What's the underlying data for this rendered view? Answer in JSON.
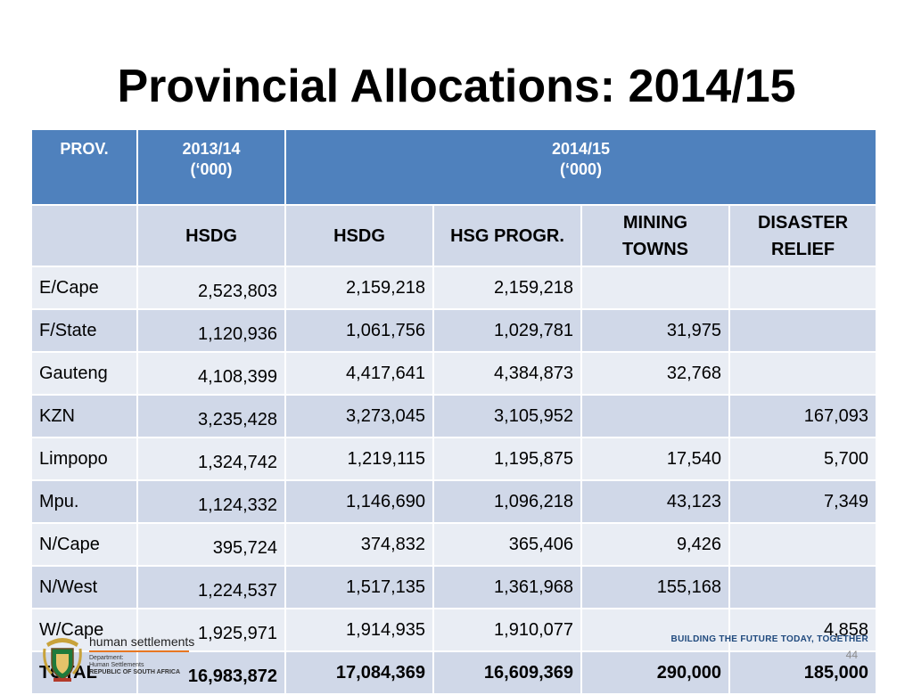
{
  "slide": {
    "title": "Provincial Allocations: 2014/15",
    "page_number": "44"
  },
  "table": {
    "header_row1": {
      "prov": "PROV.",
      "col2013": [
        "2013/14",
        "(‘000)"
      ],
      "col2014": [
        "2014/15",
        "(‘000)"
      ]
    },
    "header_row2": {
      "prov": "",
      "hsdg_2013": "HSDG",
      "hsdg_2014": "HSDG",
      "hsg_progr": "HSG PROGR.",
      "mining_towns": [
        "MINING",
        "TOWNS"
      ],
      "disaster_relief": [
        "DISASTER",
        "RELIEF"
      ]
    },
    "rows": [
      {
        "prov": "E/Cape",
        "c2013": "2,523,803",
        "hsdg": "2,159,218",
        "hsg": "2,159,218",
        "mining": "",
        "disaster": ""
      },
      {
        "prov": "F/State",
        "c2013": "1,120,936",
        "hsdg": "1,061,756",
        "hsg": "1,029,781",
        "mining": "31,975",
        "disaster": ""
      },
      {
        "prov": "Gauteng",
        "c2013": "4,108,399",
        "hsdg": "4,417,641",
        "hsg": "4,384,873",
        "mining": "32,768",
        "disaster": ""
      },
      {
        "prov": "KZN",
        "c2013": "3,235,428",
        "hsdg": "3,273,045",
        "hsg": "3,105,952",
        "mining": "",
        "disaster": "167,093"
      },
      {
        "prov": "Limpopo",
        "c2013": "1,324,742",
        "hsdg": "1,219,115",
        "hsg": "1,195,875",
        "mining": "17,540",
        "disaster": "5,700"
      },
      {
        "prov": "Mpu.",
        "c2013": "1,124,332",
        "hsdg": "1,146,690",
        "hsg": "1,096,218",
        "mining": "43,123",
        "disaster": "7,349"
      },
      {
        "prov": "N/Cape",
        "c2013": "395,724",
        "hsdg": "374,832",
        "hsg": "365,406",
        "mining": "9,426",
        "disaster": ""
      },
      {
        "prov": "N/West",
        "c2013": "1,224,537",
        "hsdg": "1,517,135",
        "hsg": "1,361,968",
        "mining": "155,168",
        "disaster": ""
      },
      {
        "prov": "W/Cape",
        "c2013": "1,925,971",
        "hsdg": "1,914,935",
        "hsg": "1,910,077",
        "mining": "",
        "disaster": "4,858"
      }
    ],
    "total": {
      "prov": "TOTAL",
      "c2013": "16,983,872",
      "hsdg": "17,084,369",
      "hsg": "16,609,369",
      "mining": "290,000",
      "disaster": "185,000"
    }
  },
  "footer": {
    "brand_name": "human settlements",
    "department_lines": [
      "Department:",
      "Human Settlements"
    ],
    "country": "REPUBLIC OF SOUTH AFRICA",
    "tagline": "BUILDING THE FUTURE TODAY, TOGETHER",
    "logo_icon": "coat-of-arms-icon",
    "colors": {
      "header_blue": "#4f81bd",
      "row_light": "#e9edf4",
      "row_dark": "#d0d8e8",
      "accent_orange": "#e87722"
    }
  }
}
